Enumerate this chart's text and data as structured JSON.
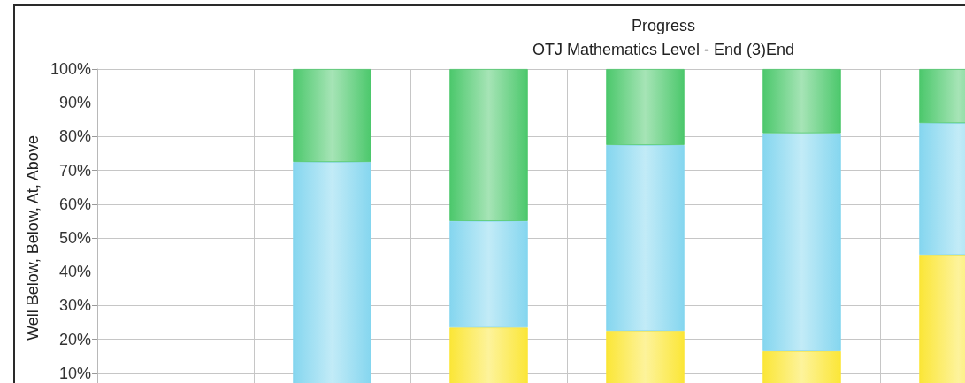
{
  "chart_data": {
    "type": "bar",
    "stacked": true,
    "title": "Progress",
    "subtitle": "OTJ Mathematics Level - End (3)End",
    "ylabel": "Well Below, Below, At, Above",
    "categories": [
      null,
      null,
      null,
      null,
      null,
      null
    ],
    "series": [
      {
        "color": "#fbe637",
        "values": [
          null,
          null,
          23.5,
          22.5,
          16.5,
          45
        ]
      },
      {
        "color": "#85d6ef",
        "values": [
          null,
          72.5,
          31.5,
          55,
          64.5,
          39
        ]
      },
      {
        "color": "#4cc86c",
        "values": [
          null,
          27.5,
          45,
          22.5,
          19,
          16
        ]
      }
    ],
    "ylim": [
      0,
      100
    ],
    "yticks": [
      {
        "value": 10,
        "label": "10%"
      },
      {
        "value": 20,
        "label": "20%"
      },
      {
        "value": 30,
        "label": "30%"
      },
      {
        "value": 40,
        "label": "40%"
      },
      {
        "value": 50,
        "label": "50%"
      },
      {
        "value": 60,
        "label": "60%"
      },
      {
        "value": 70,
        "label": "70%"
      },
      {
        "value": 80,
        "label": "80%"
      },
      {
        "value": 90,
        "label": "90%"
      },
      {
        "value": 100,
        "label": "100%"
      }
    ],
    "grid": true,
    "tick_labels": "y"
  }
}
